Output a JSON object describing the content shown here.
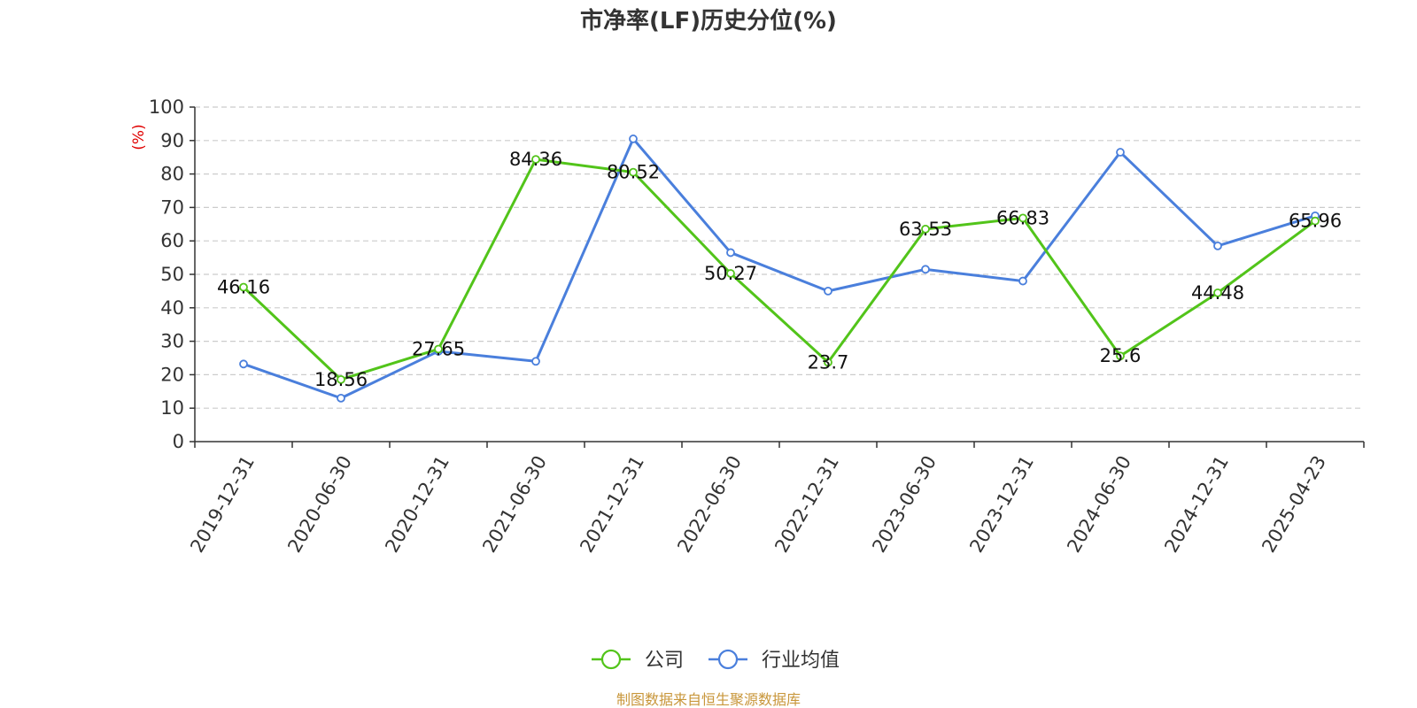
{
  "chart_data": {
    "type": "line",
    "title": "市净率(LF)历史分位(%)",
    "ylabel": "(%)",
    "ylim": [
      0,
      100
    ],
    "yticks": [
      0,
      10,
      20,
      30,
      40,
      50,
      60,
      70,
      80,
      90,
      100
    ],
    "grid": true,
    "legend_position": "bottom",
    "categories": [
      "2019-12-31",
      "2020-06-30",
      "2020-12-31",
      "2021-06-30",
      "2021-12-31",
      "2022-06-30",
      "2022-12-31",
      "2023-06-30",
      "2023-12-31",
      "2024-06-30",
      "2024-12-31",
      "2025-04-23"
    ],
    "series": [
      {
        "name": "公司",
        "color": "#52c41a",
        "values": [
          46.16,
          18.56,
          27.65,
          84.36,
          80.52,
          50.27,
          23.7,
          63.53,
          66.83,
          25.6,
          44.48,
          65.96
        ],
        "labels": [
          "46.16",
          "18.56",
          "27.65",
          "84.36",
          "80.52",
          "50.27",
          "23.7",
          "63.53",
          "66.83",
          "25.6",
          "44.48",
          "65.96"
        ]
      },
      {
        "name": "行业均值",
        "color": "#4a7fdc",
        "values": [
          23.2,
          13.0,
          27.0,
          24.0,
          90.5,
          56.5,
          45.0,
          51.5,
          48.0,
          86.5,
          58.5,
          67.5
        ]
      }
    ],
    "source": "制图数据来自恒生聚源数据库"
  }
}
